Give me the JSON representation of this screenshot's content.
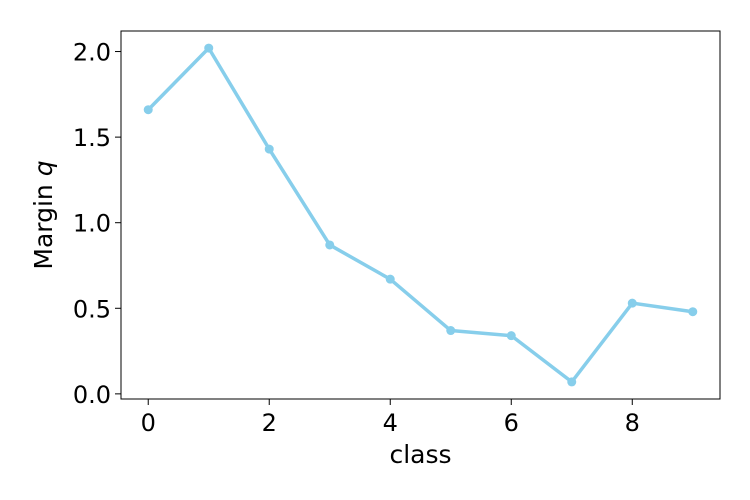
{
  "chart_data": {
    "type": "line",
    "title": "",
    "xlabel": "class",
    "ylabel": {
      "text": "Margin ",
      "symbol": "q"
    },
    "x": [
      0,
      1,
      2,
      3,
      4,
      5,
      6,
      7,
      8,
      9
    ],
    "series": [
      {
        "values": [
          1.66,
          2.02,
          1.43,
          0.87,
          0.67,
          0.37,
          0.34,
          0.07,
          0.53,
          0.48
        ],
        "color": "#87ceeb",
        "marker": "circle"
      }
    ],
    "xlim": [
      -0.45,
      9.45
    ],
    "ylim": [
      -0.03,
      2.12
    ],
    "xticks": [
      0,
      2,
      4,
      6,
      8
    ],
    "xtick_labels": [
      "0",
      "2",
      "4",
      "6",
      "8"
    ],
    "yticks": [
      0,
      0.5,
      1,
      1.5,
      2
    ],
    "ytick_labels": [
      "0.0",
      "0.5",
      "1.0",
      "1.5",
      "2.0"
    ],
    "grid": false,
    "legend": "none"
  }
}
